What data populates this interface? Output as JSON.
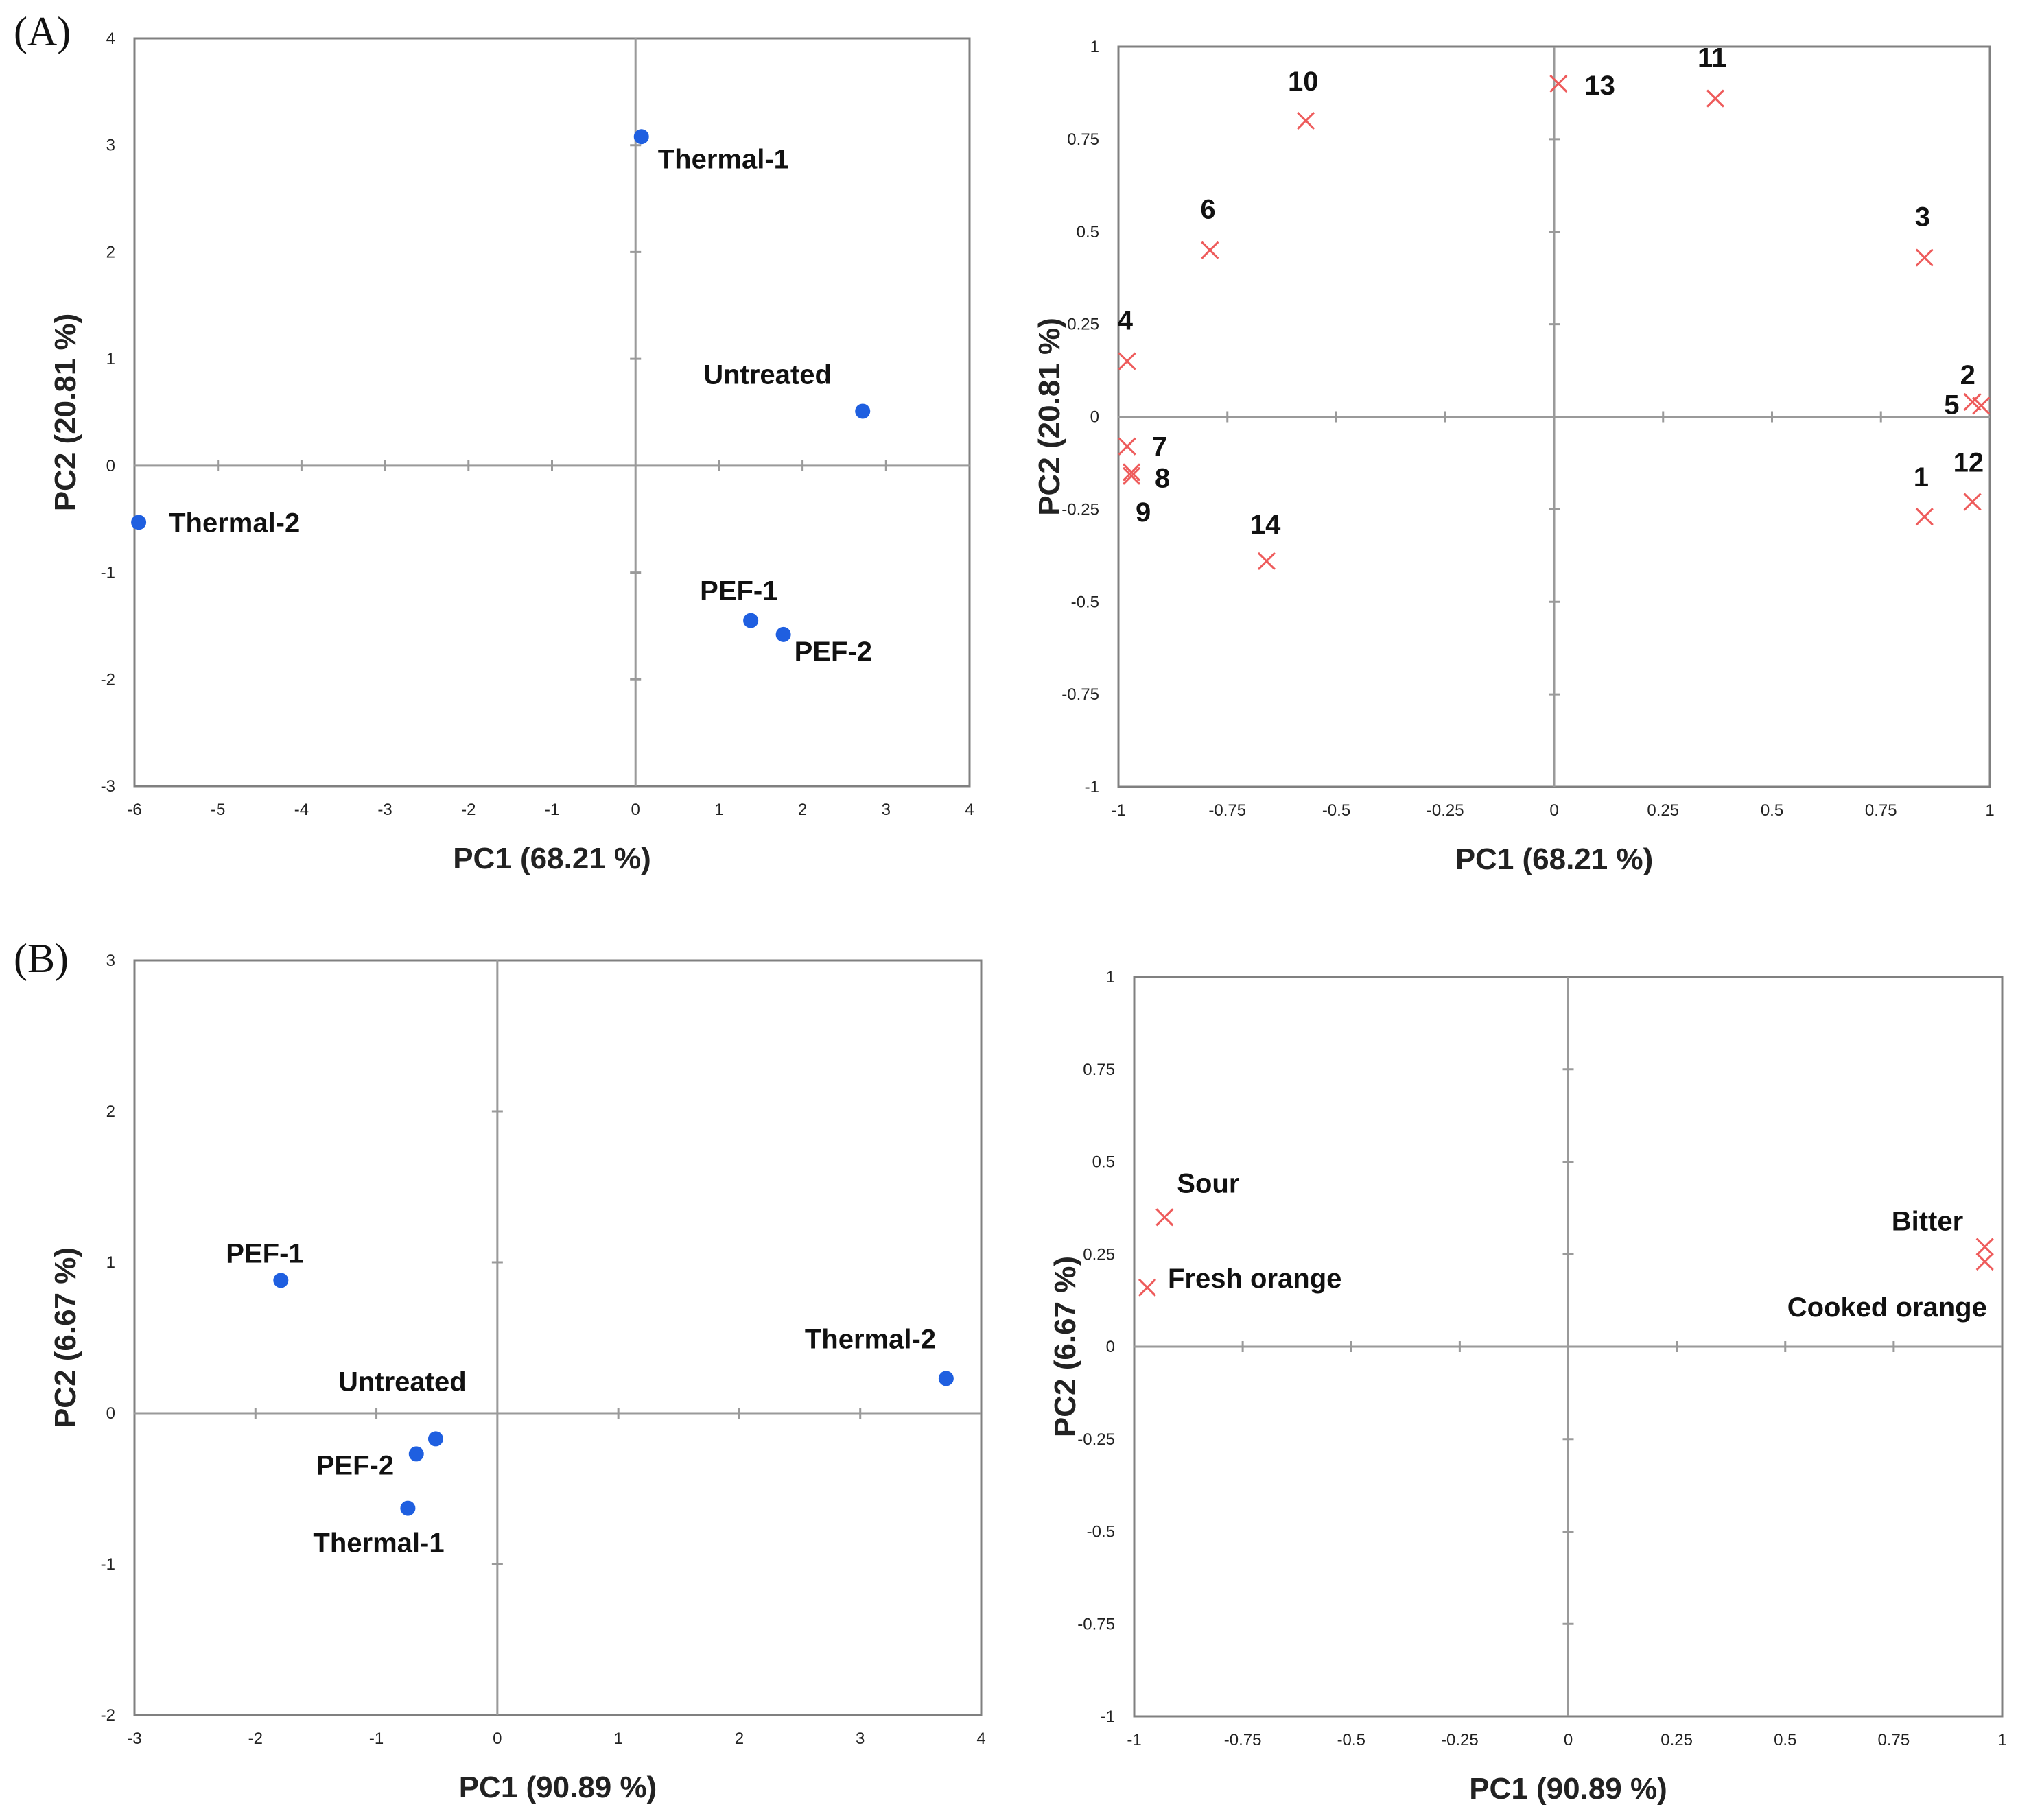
{
  "panel_labels": [
    "(A)",
    "(B)"
  ],
  "colors": {
    "scores": "#1f5fe0",
    "loadings": "#ee5b5b"
  },
  "chart_data": [
    {
      "type": "scatter",
      "id": "A-scores",
      "title": "",
      "xlabel": "PC1 (68.21 %)",
      "ylabel": "PC2 (20.81 %)",
      "xlim": [
        -6,
        4
      ],
      "ylim": [
        -3,
        4
      ],
      "xticks": [
        "-6",
        "-5",
        "-4",
        "-3",
        "-2",
        "-1",
        "0",
        "1",
        "2",
        "3",
        "4"
      ],
      "yticks": [
        "-3",
        "-2",
        "-1",
        "0",
        "1",
        "2",
        "3",
        "4"
      ],
      "marker": "dot",
      "points": [
        {
          "label": "Thermal-1",
          "x": 0.07,
          "y": 3.08
        },
        {
          "label": "Untreated",
          "x": 2.72,
          "y": 0.51
        },
        {
          "label": "Thermal-2",
          "x": -5.95,
          "y": -0.53
        },
        {
          "label": "PEF-1",
          "x": 1.38,
          "y": -1.45
        },
        {
          "label": "PEF-2",
          "x": 1.77,
          "y": -1.58
        }
      ]
    },
    {
      "type": "scatter",
      "id": "A-loadings",
      "title": "",
      "xlabel": "PC1 (68.21 %)",
      "ylabel": "PC2 (20.81 %)",
      "xlim": [
        -1,
        1
      ],
      "ylim": [
        -1,
        1
      ],
      "xticks": [
        "-1",
        "-0.75",
        "-0.5",
        "-0.25",
        "0",
        "0.25",
        "0.5",
        "0.75",
        "1"
      ],
      "yticks": [
        "-1",
        "-0.75",
        "-0.5",
        "-0.25",
        "0",
        "0.25",
        "0.5",
        "0.75",
        "1"
      ],
      "marker": "cross",
      "points": [
        {
          "label": "10",
          "x": -0.57,
          "y": 0.8
        },
        {
          "label": "13",
          "x": 0.01,
          "y": 0.9
        },
        {
          "label": "11",
          "x": 0.37,
          "y": 0.86
        },
        {
          "label": "6",
          "x": -0.79,
          "y": 0.45
        },
        {
          "label": "3",
          "x": 0.85,
          "y": 0.43
        },
        {
          "label": "4",
          "x": -0.98,
          "y": 0.15
        },
        {
          "label": "2",
          "x": 0.96,
          "y": 0.04
        },
        {
          "label": "5",
          "x": 0.98,
          "y": 0.03
        },
        {
          "label": "7",
          "x": -0.98,
          "y": -0.08
        },
        {
          "label": "8",
          "x": -0.97,
          "y": -0.15
        },
        {
          "label": "9",
          "x": -0.97,
          "y": -0.16
        },
        {
          "label": "1",
          "x": 0.85,
          "y": -0.27
        },
        {
          "label": "12",
          "x": 0.96,
          "y": -0.23
        },
        {
          "label": "14",
          "x": -0.66,
          "y": -0.39
        }
      ]
    },
    {
      "type": "scatter",
      "id": "B-scores",
      "title": "",
      "xlabel": "PC1 (90.89 %)",
      "ylabel": "PC2 (6.67 %)",
      "xlim": [
        -3,
        4
      ],
      "ylim": [
        -2,
        3
      ],
      "xticks": [
        "-3",
        "-2",
        "-1",
        "0",
        "1",
        "2",
        "3",
        "4"
      ],
      "yticks": [
        "-2",
        "-1",
        "0",
        "1",
        "2",
        "3"
      ],
      "marker": "dot",
      "points": [
        {
          "label": "PEF-1",
          "x": -1.79,
          "y": 0.88
        },
        {
          "label": "Thermal-2",
          "x": 3.71,
          "y": 0.23
        },
        {
          "label": "Untreated",
          "x": -0.51,
          "y": -0.17
        },
        {
          "label": "PEF-2",
          "x": -0.67,
          "y": -0.27
        },
        {
          "label": "Thermal-1",
          "x": -0.74,
          "y": -0.63
        }
      ]
    },
    {
      "type": "scatter",
      "id": "B-loadings",
      "title": "",
      "xlabel": "PC1 (90.89 %)",
      "ylabel": "PC2 (6.67 %)",
      "xlim": [
        -1,
        1
      ],
      "ylim": [
        -1,
        1
      ],
      "xticks": [
        "-1",
        "-0.75",
        "-0.5",
        "-0.25",
        "0",
        "0.25",
        "0.5",
        "0.75",
        "1"
      ],
      "yticks": [
        "-1",
        "-0.75",
        "-0.5",
        "-0.25",
        "0",
        "0.25",
        "0.5",
        "0.75",
        "1"
      ],
      "marker": "cross",
      "points": [
        {
          "label": "Sour",
          "x": -0.93,
          "y": 0.35
        },
        {
          "label": "Fresh orange",
          "x": -0.97,
          "y": 0.16
        },
        {
          "label": "Bitter",
          "x": 0.96,
          "y": 0.27
        },
        {
          "label": "Cooked orange",
          "x": 0.96,
          "y": 0.23
        }
      ]
    }
  ]
}
